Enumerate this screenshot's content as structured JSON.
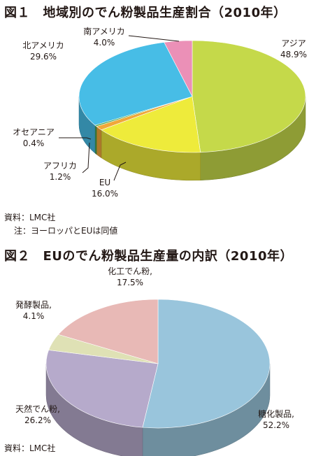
{
  "chart_data": [
    {
      "type": "pie",
      "title": "図１　地域別のでん粉製品生産割合（2010年）",
      "slices": [
        {
          "name": "アジア",
          "value": 48.9,
          "label": "48.9%",
          "color": "#c5d94a"
        },
        {
          "name": "EU",
          "value": 16.0,
          "label": "16.0%",
          "color": "#eeeb3b"
        },
        {
          "name": "アフリカ",
          "value": 1.2,
          "label": "1.2%",
          "color": "#f0a83a"
        },
        {
          "name": "オセアニア",
          "value": 0.4,
          "label": "0.4%",
          "color": "#4aa84f"
        },
        {
          "name": "北アメリカ",
          "value": 29.6,
          "label": "29.6%",
          "color": "#47bde6"
        },
        {
          "name": "南アメリカ",
          "value": 4.0,
          "label": "4.0%",
          "color": "#eb90b7"
        }
      ],
      "source": "資料：LMC社",
      "note": "注：ヨーロッパとEUは同値"
    },
    {
      "type": "pie",
      "title": "図２　EUのでん粉製品生産量の内訳（2010年）",
      "slices": [
        {
          "name": "糖化製品,",
          "value": 52.2,
          "label": "52.2%",
          "color": "#99c5dc"
        },
        {
          "name": "天然でん粉,",
          "value": 26.2,
          "label": "26.2%",
          "color": "#b6aacb"
        },
        {
          "name": "発酵製品,",
          "value": 4.1,
          "label": "4.1%",
          "color": "#dfe1b5"
        },
        {
          "name": "化工でん粉,",
          "value": 17.5,
          "label": "17.5%",
          "color": "#e8b9b6"
        }
      ],
      "source": "資料：LMC社"
    }
  ]
}
